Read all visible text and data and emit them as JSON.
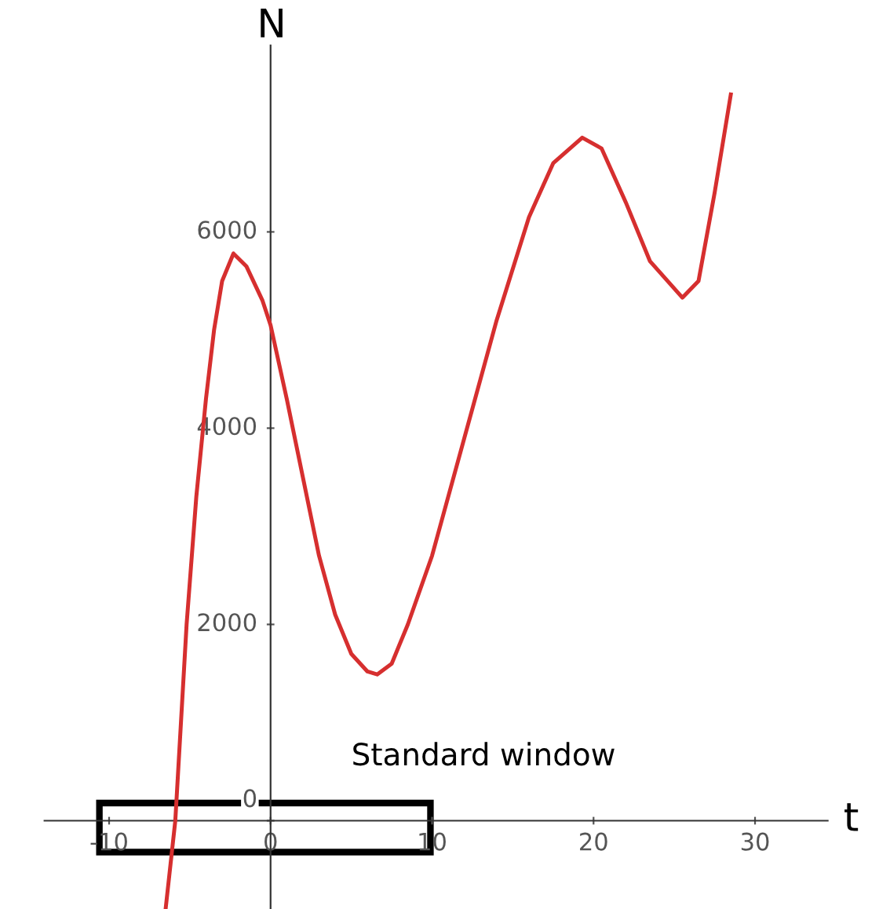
{
  "chart_data": {
    "type": "line",
    "xlabel": "t",
    "ylabel": "N",
    "x": [
      -6.5,
      -5.9,
      -5.2,
      -4.6,
      -4.0,
      -3.5,
      -3.0,
      -2.3,
      -1.5,
      -0.5,
      0,
      1,
      2,
      3,
      4,
      5,
      6,
      6.6,
      7.5,
      8.5,
      10,
      12,
      14,
      16,
      17.5,
      19.3,
      20.5,
      22,
      23.5,
      25.5,
      26.5,
      27.5,
      28.5
    ],
    "series": [
      {
        "color": "#d62f2f",
        "values": [
          -900,
          0,
          2000,
          3300,
          4300,
          5000,
          5500,
          5780,
          5650,
          5300,
          5050,
          4300,
          3500,
          2700,
          2100,
          1700,
          1520,
          1490,
          1600,
          2000,
          2700,
          3900,
          5100,
          6150,
          6700,
          6960,
          6850,
          6300,
          5700,
          5330,
          5500,
          6400,
          7400
        ]
      }
    ],
    "xlim": [
      -14,
      34.5
    ],
    "ylim": [
      -900,
      7900
    ],
    "xticks": [
      -10,
      0,
      10,
      20,
      30
    ],
    "yticks": [
      0,
      2000,
      4000,
      6000
    ],
    "grid": false,
    "legend": false,
    "marker": "none",
    "line_style": "solid",
    "annotations": [
      "Standard window"
    ]
  }
}
